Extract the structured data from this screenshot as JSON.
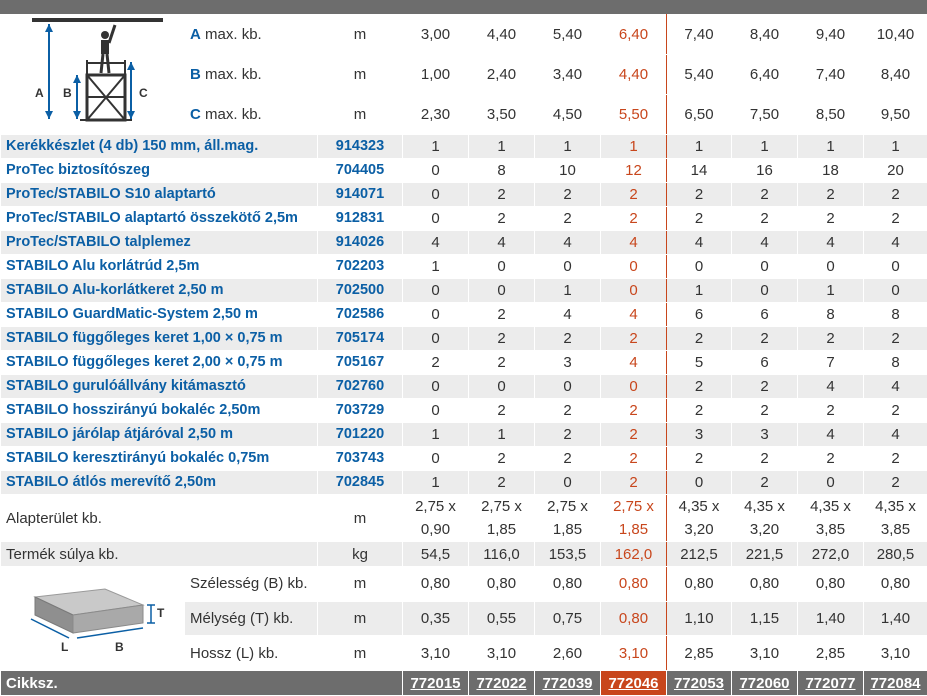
{
  "codes": [
    "772015",
    "772022",
    "772039",
    "772046",
    "772053",
    "772060",
    "772077",
    "772084"
  ],
  "height_rows": [
    {
      "letter": "A",
      "label": "max. kb.",
      "unit": "m",
      "values": [
        "3,00",
        "4,40",
        "5,40",
        "6,40",
        "7,40",
        "8,40",
        "9,40",
        "10,40"
      ]
    },
    {
      "letter": "B",
      "label": "max. kb.",
      "unit": "m",
      "values": [
        "1,00",
        "2,40",
        "3,40",
        "4,40",
        "5,40",
        "6,40",
        "7,40",
        "8,40"
      ]
    },
    {
      "letter": "C",
      "label": "max. kb.",
      "unit": "m",
      "values": [
        "2,30",
        "3,50",
        "4,50",
        "5,50",
        "6,50",
        "7,50",
        "8,50",
        "9,50"
      ]
    }
  ],
  "parts": [
    {
      "name": "Kerékkészlet (4 db) 150 mm, áll.mag.",
      "code": "914323",
      "values": [
        "1",
        "1",
        "1",
        "1",
        "1",
        "1",
        "1",
        "1"
      ]
    },
    {
      "name": "ProTec biztosítószeg",
      "code": "704405",
      "values": [
        "0",
        "8",
        "10",
        "12",
        "14",
        "16",
        "18",
        "20"
      ]
    },
    {
      "name": "ProTec/STABILO S10 alaptartó",
      "code": "914071",
      "values": [
        "0",
        "2",
        "2",
        "2",
        "2",
        "2",
        "2",
        "2"
      ]
    },
    {
      "name": "ProTec/STABILO alaptartó összekötő 2,5m",
      "code": "912831",
      "values": [
        "0",
        "2",
        "2",
        "2",
        "2",
        "2",
        "2",
        "2"
      ]
    },
    {
      "name": "ProTec/STABILO talplemez",
      "code": "914026",
      "values": [
        "4",
        "4",
        "4",
        "4",
        "4",
        "4",
        "4",
        "4"
      ]
    },
    {
      "name": "STABILO Alu korlátrúd 2,5m",
      "code": "702203",
      "values": [
        "1",
        "0",
        "0",
        "0",
        "0",
        "0",
        "0",
        "0"
      ]
    },
    {
      "name": "STABILO Alu-korlátkeret 2,50 m",
      "code": "702500",
      "values": [
        "0",
        "0",
        "1",
        "0",
        "1",
        "0",
        "1",
        "0"
      ]
    },
    {
      "name": "STABILO GuardMatic-System 2,50 m",
      "code": "702586",
      "values": [
        "0",
        "2",
        "4",
        "4",
        "6",
        "6",
        "8",
        "8"
      ]
    },
    {
      "name": "STABILO függőleges keret 1,00 × 0,75 m",
      "code": "705174",
      "values": [
        "0",
        "2",
        "2",
        "2",
        "2",
        "2",
        "2",
        "2"
      ]
    },
    {
      "name": "STABILO függőleges keret 2,00 × 0,75 m",
      "code": "705167",
      "values": [
        "2",
        "2",
        "3",
        "4",
        "5",
        "6",
        "7",
        "8"
      ]
    },
    {
      "name": "STABILO gurulóállvány kitámasztó",
      "code": "702760",
      "values": [
        "0",
        "0",
        "0",
        "0",
        "2",
        "2",
        "4",
        "4"
      ]
    },
    {
      "name": "STABILO hosszirányú bokaléc 2,50m",
      "code": "703729",
      "values": [
        "0",
        "2",
        "2",
        "2",
        "2",
        "2",
        "2",
        "2"
      ]
    },
    {
      "name": "STABILO járólap átjáróval 2,50 m",
      "code": "701220",
      "values": [
        "1",
        "1",
        "2",
        "2",
        "3",
        "3",
        "4",
        "4"
      ]
    },
    {
      "name": "STABILO keresztirányú bokaléc 0,75m",
      "code": "703743",
      "values": [
        "0",
        "2",
        "2",
        "2",
        "2",
        "2",
        "2",
        "2"
      ]
    },
    {
      "name": "STABILO átlós merevítő 2,50m",
      "code": "702845",
      "values": [
        "1",
        "2",
        "0",
        "2",
        "0",
        "2",
        "0",
        "2"
      ]
    }
  ],
  "footprint": {
    "label": "Alapterület kb.",
    "unit": "m",
    "values": [
      [
        "2,75 x",
        "0,90"
      ],
      [
        "2,75 x",
        "1,85"
      ],
      [
        "2,75 x",
        "1,85"
      ],
      [
        "2,75 x",
        "1,85"
      ],
      [
        "4,35 x",
        "3,20"
      ],
      [
        "4,35 x",
        "3,20"
      ],
      [
        "4,35 x",
        "3,85"
      ],
      [
        "4,35 x",
        "3,85"
      ]
    ]
  },
  "weight": {
    "label": "Termék súlya kb.",
    "unit": "kg",
    "values": [
      "54,5",
      "116,0",
      "153,5",
      "162,0",
      "212,5",
      "221,5",
      "272,0",
      "280,5"
    ]
  },
  "package_rows": [
    {
      "label": "Szélesség (B) kb.",
      "unit": "m",
      "values": [
        "0,80",
        "0,80",
        "0,80",
        "0,80",
        "0,80",
        "0,80",
        "0,80",
        "0,80"
      ]
    },
    {
      "label": "Mélység (T) kb.",
      "unit": "m",
      "values": [
        "0,35",
        "0,55",
        "0,75",
        "0,80",
        "1,10",
        "1,15",
        "1,40",
        "1,40"
      ]
    },
    {
      "label": "Hossz (L) kb.",
      "unit": "m",
      "values": [
        "3,10",
        "3,10",
        "2,60",
        "3,10",
        "2,85",
        "3,10",
        "2,85",
        "3,10"
      ]
    }
  ],
  "footer_label": "Cikksz.",
  "scaffold_labels": {
    "a": "A",
    "b": "B",
    "c": "C"
  },
  "box_labels": {
    "t": "T",
    "l": "L",
    "b": "B"
  },
  "highlight_column": 3,
  "colors": {
    "accent": "#c8461c",
    "blue": "#0b5fa5",
    "bar": "#6d6d6d",
    "row_alt": "#ececec"
  }
}
